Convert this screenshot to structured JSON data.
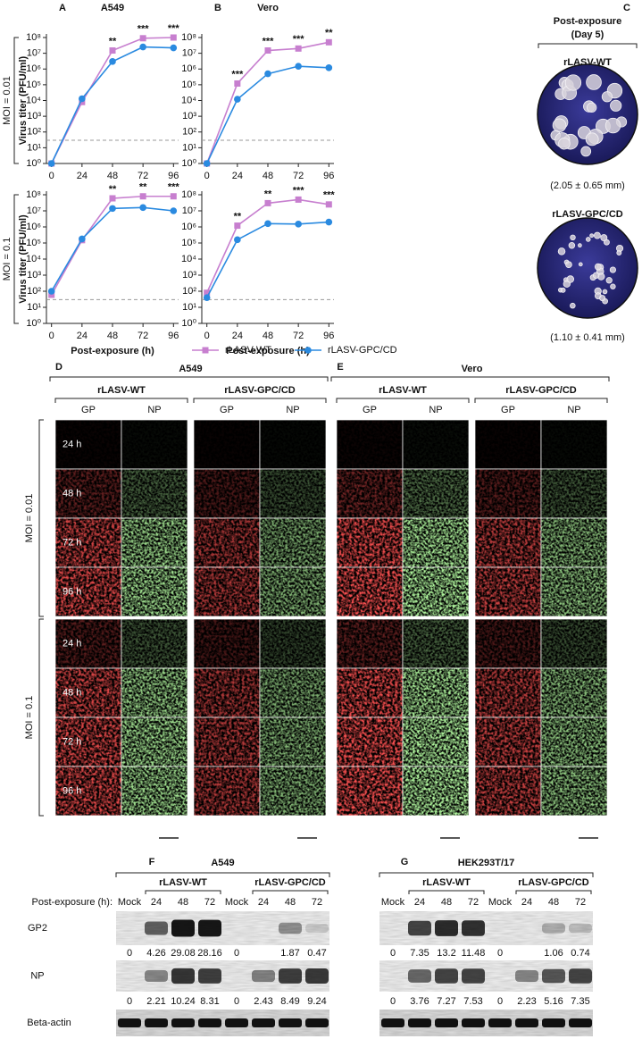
{
  "chart_data": [
    {
      "type": "line",
      "panel": "A",
      "title": "A549",
      "y_label": "Virus titer (PFU/ml)",
      "x": [
        0,
        24,
        48,
        72,
        96
      ],
      "xlim": [
        -4,
        100
      ],
      "xticks": [
        0,
        24,
        48,
        72,
        96
      ],
      "ylim": [
        1,
        100000000
      ],
      "log_y": true,
      "yticks": [
        {
          "value": 1,
          "label": "10⁰"
        },
        {
          "value": 10,
          "label": "10¹"
        },
        {
          "value": 100,
          "label": "10²"
        },
        {
          "value": 1000,
          "label": "10³"
        },
        {
          "value": 10000,
          "label": "10⁴"
        },
        {
          "value": 100000,
          "label": "10⁵"
        },
        {
          "value": 1000000,
          "label": "10⁶"
        },
        {
          "value": 10000000,
          "label": "10⁷"
        },
        {
          "value": 100000000,
          "label": "10⁸"
        }
      ],
      "reference_line": 30,
      "series": [
        {
          "name": "rLASV-WT",
          "color": "#c77fcf",
          "marker": "square",
          "values": [
            1,
            8000,
            15000000,
            90000000,
            100000000
          ]
        },
        {
          "name": "rLASV-GPC/CD",
          "color": "#2a8ae0",
          "marker": "circle",
          "values": [
            1,
            13000,
            3000000,
            25000000,
            22000000
          ]
        }
      ],
      "annotations": [
        {
          "x": 48,
          "text": "**"
        },
        {
          "x": 72,
          "text": "***"
        },
        {
          "x": 96,
          "text": "***"
        }
      ]
    },
    {
      "type": "line",
      "panel": "B",
      "title": "Vero",
      "x": [
        0,
        24,
        48,
        72,
        96
      ],
      "xlim": [
        -4,
        100
      ],
      "xticks": [
        0,
        24,
        48,
        72,
        96
      ],
      "ylim": [
        1,
        100000000
      ],
      "log_y": true,
      "yticks": [
        {
          "value": 1,
          "label": "10⁰"
        },
        {
          "value": 10,
          "label": "10¹"
        },
        {
          "value": 100,
          "label": "10²"
        },
        {
          "value": 1000,
          "label": "10³"
        },
        {
          "value": 10000,
          "label": "10⁴"
        },
        {
          "value": 100000,
          "label": "10⁵"
        },
        {
          "value": 1000000,
          "label": "10⁶"
        },
        {
          "value": 10000000,
          "label": "10⁷"
        },
        {
          "value": 100000000,
          "label": "10⁸"
        }
      ],
      "reference_line": 30,
      "series": [
        {
          "name": "rLASV-WT",
          "color": "#c77fcf",
          "marker": "square",
          "values": [
            1,
            120000,
            15000000,
            20000000,
            50000000
          ]
        },
        {
          "name": "rLASV-GPC/CD",
          "color": "#2a8ae0",
          "marker": "circle",
          "values": [
            1,
            12000,
            500000,
            1500000,
            1200000
          ]
        }
      ],
      "annotations": [
        {
          "x": 24,
          "text": "***"
        },
        {
          "x": 48,
          "text": "***"
        },
        {
          "x": 72,
          "text": "***"
        },
        {
          "x": 96,
          "text": "**"
        }
      ]
    },
    {
      "type": "line",
      "y_label": "Virus titer (PFU/ml)",
      "x_label": "Post-exposure (h)",
      "x": [
        0,
        24,
        48,
        72,
        96
      ],
      "xlim": [
        -4,
        100
      ],
      "xticks": [
        0,
        24,
        48,
        72,
        96
      ],
      "ylim": [
        1,
        100000000
      ],
      "log_y": true,
      "yticks": [
        {
          "value": 1,
          "label": "10⁰"
        },
        {
          "value": 10,
          "label": "10¹"
        },
        {
          "value": 100,
          "label": "10²"
        },
        {
          "value": 1000,
          "label": "10³"
        },
        {
          "value": 10000,
          "label": "10⁴"
        },
        {
          "value": 100000,
          "label": "10⁵"
        },
        {
          "value": 1000000,
          "label": "10⁶"
        },
        {
          "value": 10000000,
          "label": "10⁷"
        },
        {
          "value": 100000000,
          "label": "10⁸"
        }
      ],
      "reference_line": 30,
      "series": [
        {
          "name": "rLASV-WT",
          "color": "#c77fcf",
          "marker": "square",
          "values": [
            60,
            150000,
            60000000,
            80000000,
            80000000
          ]
        },
        {
          "name": "rLASV-GPC/CD",
          "color": "#2a8ae0",
          "marker": "circle",
          "values": [
            100,
            180000,
            14000000,
            16000000,
            10000000
          ]
        }
      ],
      "annotations": [
        {
          "x": 48,
          "text": "**"
        },
        {
          "x": 72,
          "text": "**"
        },
        {
          "x": 96,
          "text": "***"
        }
      ]
    },
    {
      "type": "line",
      "x_label": "Post-exposure (h)",
      "x": [
        0,
        24,
        48,
        72,
        96
      ],
      "xlim": [
        -4,
        100
      ],
      "xticks": [
        0,
        24,
        48,
        72,
        96
      ],
      "ylim": [
        1,
        100000000
      ],
      "log_y": true,
      "yticks": [
        {
          "value": 1,
          "label": "10⁰"
        },
        {
          "value": 10,
          "label": "10¹"
        },
        {
          "value": 100,
          "label": "10²"
        },
        {
          "value": 1000,
          "label": "10³"
        },
        {
          "value": 10000,
          "label": "10⁴"
        },
        {
          "value": 100000,
          "label": "10⁵"
        },
        {
          "value": 1000000,
          "label": "10⁶"
        },
        {
          "value": 10000000,
          "label": "10⁷"
        },
        {
          "value": 100000000,
          "label": "10⁸"
        }
      ],
      "reference_line": 30,
      "series": [
        {
          "name": "rLASV-WT",
          "color": "#c77fcf",
          "marker": "square",
          "values": [
            80,
            1200000,
            30000000,
            50000000,
            25000000
          ]
        },
        {
          "name": "rLASV-GPC/CD",
          "color": "#2a8ae0",
          "marker": "circle",
          "values": [
            40,
            160000,
            1600000,
            1500000,
            2000000
          ]
        }
      ],
      "annotations": [
        {
          "x": 24,
          "text": "**"
        },
        {
          "x": 48,
          "text": "**"
        },
        {
          "x": 72,
          "text": "***"
        },
        {
          "x": 96,
          "text": "***"
        }
      ]
    }
  ],
  "moi_labels": [
    "MOI = 0.01",
    "MOI = 0.1"
  ],
  "plaques": {
    "panel": "C",
    "title": [
      "Post-exposure",
      "(Day 5)"
    ],
    "items": [
      {
        "name": "rLASV-WT",
        "size": "(2.05 ± 0.65 mm)"
      },
      {
        "name": "rLASV-GPC/CD",
        "size": "(1.10 ± 0.41 mm)"
      }
    ]
  },
  "microscopy": [
    {
      "panel": "D",
      "title": "A549",
      "groups": [
        "rLASV-WT",
        "rLASV-GPC/CD"
      ],
      "channels": [
        "GP",
        "NP"
      ]
    },
    {
      "panel": "E",
      "title": "Vero",
      "groups": [
        "rLASV-WT",
        "rLASV-GPC/CD"
      ],
      "channels": [
        "GP",
        "NP"
      ]
    }
  ],
  "times": [
    "24 h",
    "48 h",
    "72 h",
    "96 h"
  ],
  "lane_label": "Post-exposure (h):",
  "blot_rows": [
    "GP2",
    "NP",
    "Beta-actin"
  ],
  "blots": [
    {
      "panel": "F",
      "title": "A549",
      "groups": [
        "rLASV-WT",
        "rLASV-GPC/CD"
      ],
      "lanes": [
        "Mock",
        24,
        48,
        72,
        "Mock",
        24,
        48,
        72
      ],
      "values": [
        [
          0,
          4.26,
          29.08,
          28.16,
          0,
          null,
          1.87,
          0.47
        ],
        [
          0,
          2.21,
          10.24,
          8.31,
          0,
          2.43,
          8.49,
          9.24
        ]
      ]
    },
    {
      "panel": "G",
      "title": "HEK293T/17",
      "groups": [
        "rLASV-WT",
        "rLASV-GPC/CD"
      ],
      "lanes": [
        "Mock",
        24,
        48,
        72,
        "Mock",
        24,
        48,
        72
      ],
      "values": [
        [
          0,
          7.35,
          13.2,
          11.48,
          0,
          null,
          1.06,
          0.74
        ],
        [
          0,
          3.76,
          7.27,
          7.53,
          0,
          2.23,
          5.16,
          7.35
        ]
      ]
    }
  ]
}
